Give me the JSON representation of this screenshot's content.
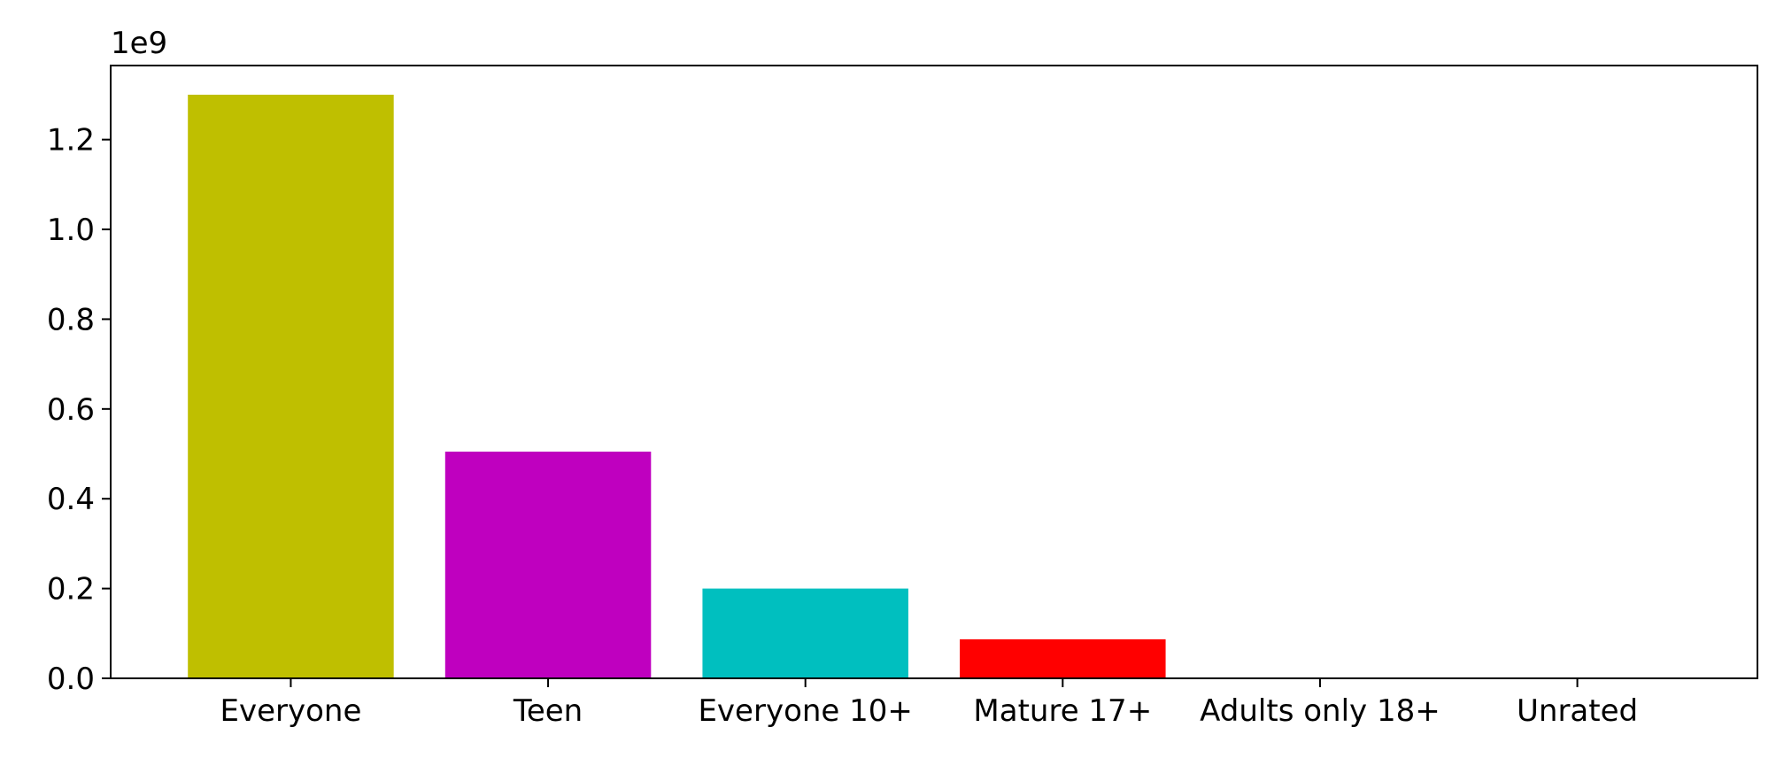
{
  "chart_data": {
    "type": "bar",
    "title": "",
    "xlabel": "",
    "ylabel": "",
    "y_offset_label": "1e9",
    "categories": [
      "Everyone",
      "Teen",
      "Everyone 10+",
      "Mature 17+",
      "Adults only 18+",
      "Unrated"
    ],
    "values": [
      1300000000,
      505000000,
      200000000,
      87000000,
      0,
      0
    ],
    "colors": [
      "#bfbf00",
      "#bf00bf",
      "#00bfbf",
      "#ff0000",
      "#0000ff",
      "#008000"
    ],
    "ylim": [
      0,
      1365000000
    ],
    "yticks": [
      0,
      200000000,
      400000000,
      600000000,
      800000000,
      1000000000,
      1200000000
    ],
    "ytick_labels": [
      "0.0",
      "0.2",
      "0.4",
      "0.6",
      "0.8",
      "1.0",
      "1.2"
    ],
    "grid": false,
    "legend": "none"
  }
}
